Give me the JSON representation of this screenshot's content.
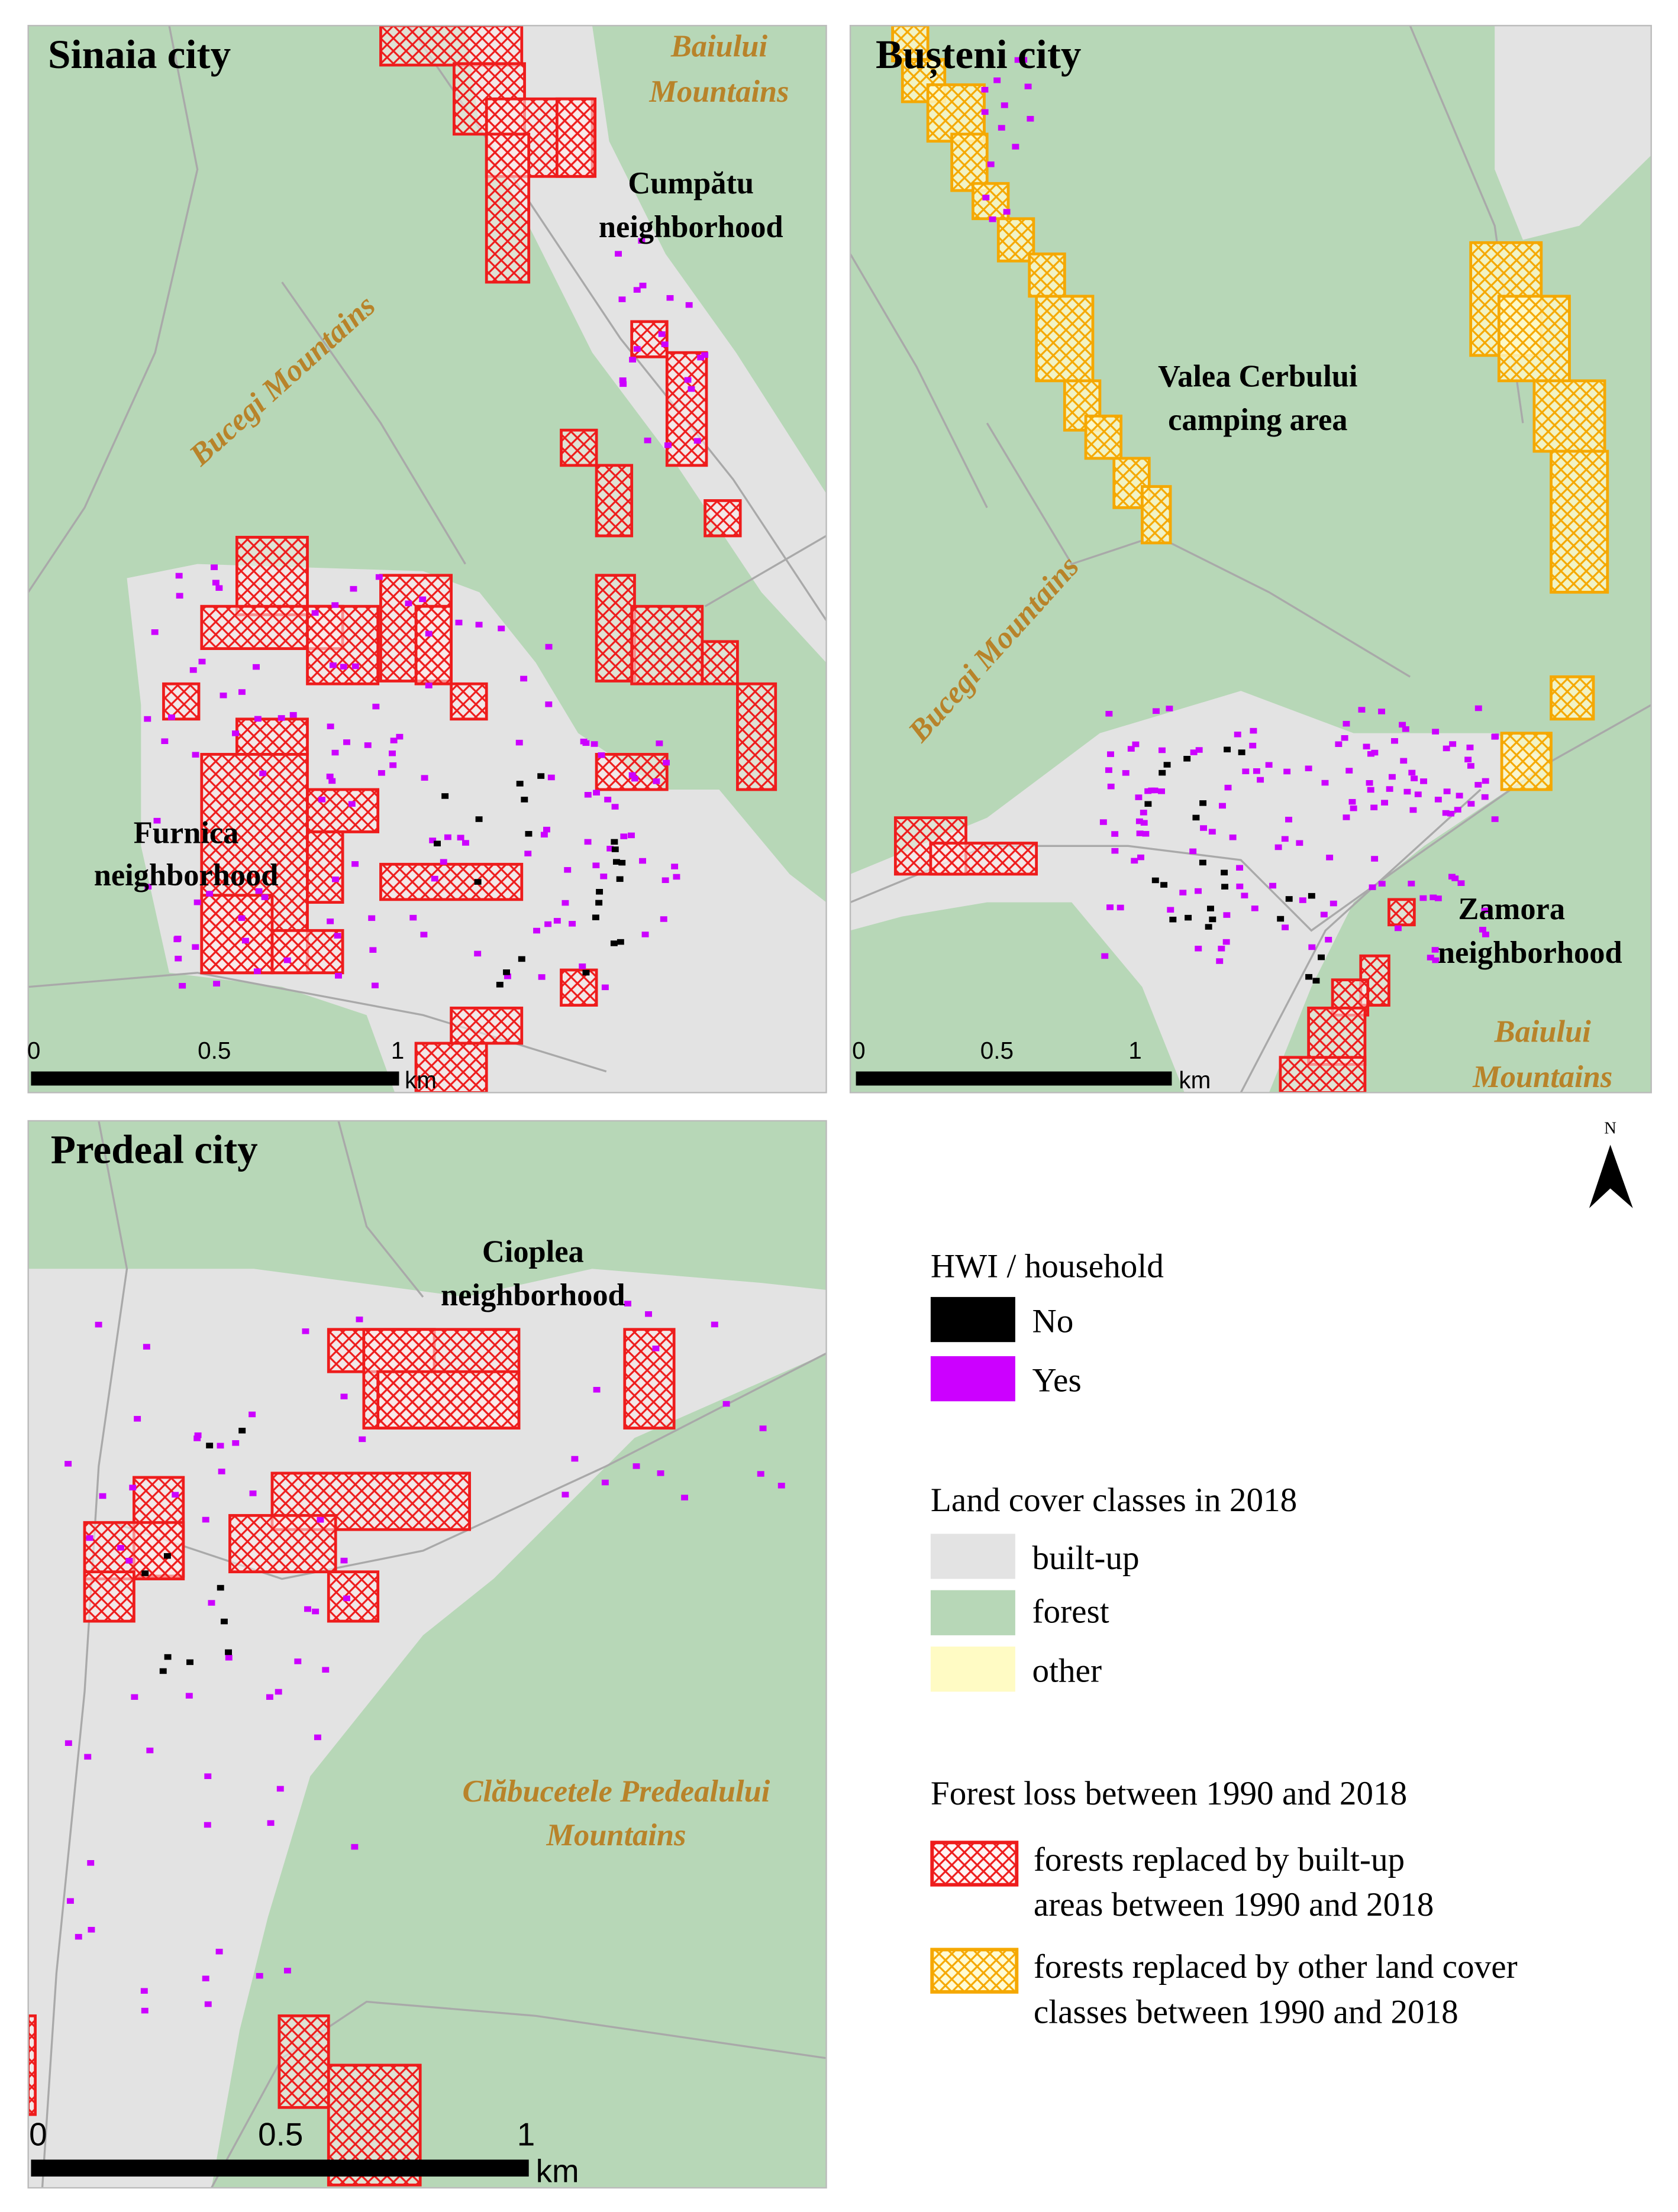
{
  "panels": [
    {
      "title": "Sinaia city",
      "labels": [
        [
          "Baiului",
          "Mountains"
        ],
        [
          "Cumpătu",
          "neighborhood"
        ],
        [
          "Bucegi Mountains"
        ],
        [
          "Furnica",
          "neighborhood"
        ]
      ],
      "scale_bar": [
        "0",
        "0.5",
        "1",
        "km"
      ]
    },
    {
      "title": "Bușteni city",
      "labels": [
        [
          "Valea Cerbului",
          "camping area"
        ],
        [
          "Bucegi Mountains"
        ],
        [
          "Zamora",
          "neighborhood"
        ],
        [
          "Baiului",
          "Mountains"
        ]
      ],
      "scale_bar": [
        "0",
        "0.5",
        "1",
        "km"
      ]
    },
    {
      "title": "Predeal city",
      "labels": [
        [
          "Cioplea",
          "neighborhood"
        ],
        [
          "Clăbucetele Predealului",
          "Mountains"
        ]
      ],
      "scale_bar": [
        "0",
        "0.5",
        "1",
        "km"
      ]
    }
  ],
  "north_arrow": "N",
  "legend": {
    "hwi": {
      "title": "HWI / household",
      "items": [
        "No",
        "Yes"
      ]
    },
    "land_cover": {
      "title": "Land cover classes in 2018",
      "items": [
        "built-up",
        "forest",
        "other"
      ]
    },
    "forest_loss": {
      "title": "Forest loss between 1990 and 2018",
      "items": [
        [
          "forests replaced by built-up",
          "areas between 1990 and 2018"
        ],
        [
          "forests replaced by other land cover",
          "classes between 1990 and 2018"
        ]
      ]
    }
  }
}
